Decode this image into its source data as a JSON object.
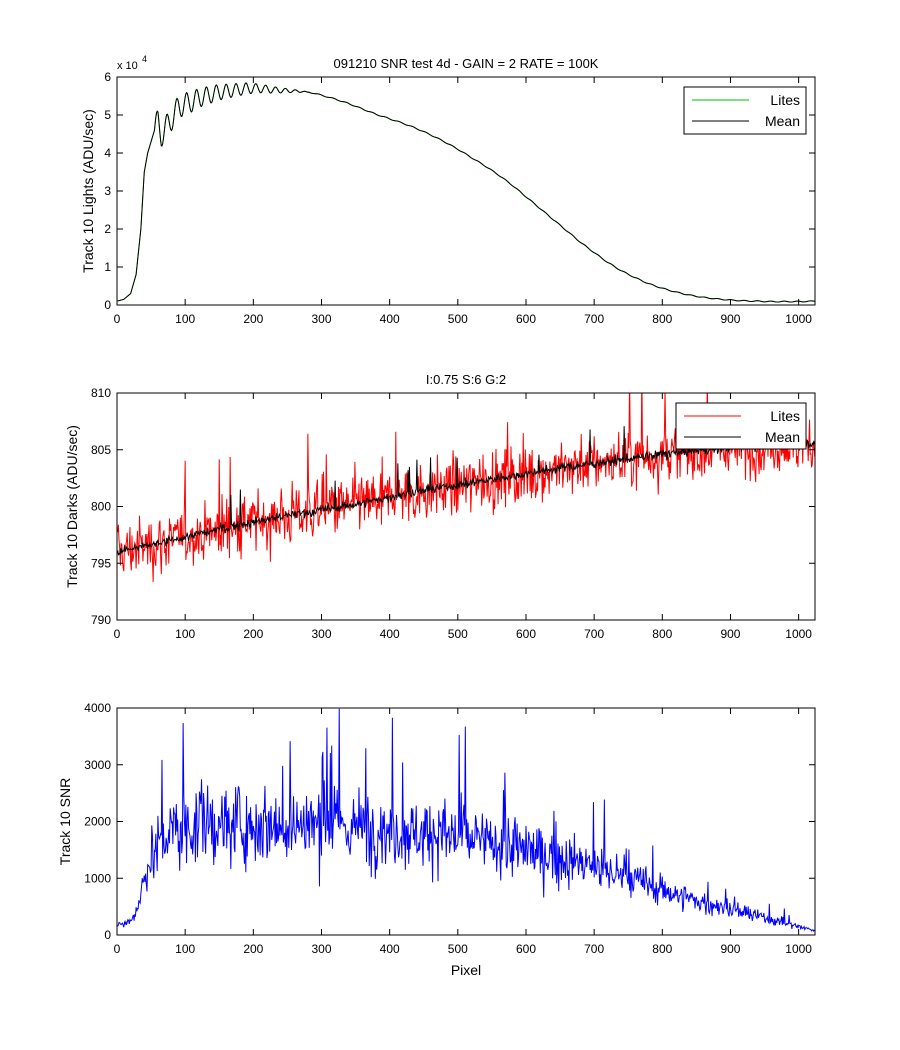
{
  "chart_data": [
    {
      "type": "line",
      "title": "091210  SNR test 4d - GAIN = 2  RATE = 100K",
      "xlabel": "",
      "ylabel": "Track 10 Lights (ADU/sec)",
      "y_multiplier_label": "x 10",
      "y_multiplier_exponent": "4",
      "xlim": [
        0,
        1024
      ],
      "ylim": [
        0,
        6
      ],
      "xticks": [
        "0",
        "100",
        "200",
        "300",
        "400",
        "500",
        "600",
        "700",
        "800",
        "900",
        "1000"
      ],
      "yticks": [
        "0",
        "1",
        "2",
        "3",
        "4",
        "5",
        "6"
      ],
      "legend_position": "top-right",
      "grid": false,
      "series": [
        {
          "name": "Lites",
          "color": "#00c000",
          "x": [
            0,
            10,
            20,
            28,
            35,
            40,
            45,
            50,
            55,
            60,
            65,
            70,
            80,
            90,
            100,
            110,
            120,
            130,
            140,
            150,
            160,
            170,
            180,
            190,
            200,
            210,
            220,
            230,
            240,
            250,
            260,
            270,
            280,
            290,
            300,
            320,
            340,
            360,
            380,
            400,
            420,
            440,
            460,
            480,
            500,
            520,
            540,
            560,
            580,
            600,
            620,
            640,
            660,
            680,
            700,
            720,
            740,
            760,
            780,
            800,
            820,
            840,
            860,
            880,
            900,
            920,
            940,
            960,
            980,
            1000,
            1024
          ],
          "values": [
            0.1,
            0.15,
            0.3,
            0.8,
            2.0,
            3.5,
            4.0,
            4.3,
            4.6,
            4.8,
            4.5,
            4.6,
            4.9,
            5.2,
            5.3,
            5.35,
            5.45,
            5.5,
            5.55,
            5.6,
            5.62,
            5.65,
            5.67,
            5.7,
            5.7,
            5.7,
            5.68,
            5.66,
            5.65,
            5.64,
            5.63,
            5.62,
            5.6,
            5.57,
            5.52,
            5.42,
            5.3,
            5.16,
            5.02,
            4.9,
            4.78,
            4.64,
            4.48,
            4.3,
            4.1,
            3.88,
            3.66,
            3.42,
            3.15,
            2.85,
            2.55,
            2.25,
            1.95,
            1.65,
            1.38,
            1.12,
            0.9,
            0.72,
            0.56,
            0.44,
            0.34,
            0.26,
            0.2,
            0.16,
            0.13,
            0.11,
            0.1,
            0.09,
            0.09,
            0.09,
            0.1
          ]
        },
        {
          "name": "Mean",
          "color": "#000000",
          "x": [
            0,
            10,
            20,
            28,
            35,
            40,
            45,
            50,
            55,
            60,
            65,
            70,
            80,
            90,
            100,
            110,
            120,
            130,
            140,
            150,
            160,
            170,
            180,
            190,
            200,
            210,
            220,
            230,
            240,
            250,
            260,
            270,
            280,
            290,
            300,
            320,
            340,
            360,
            380,
            400,
            420,
            440,
            460,
            480,
            500,
            520,
            540,
            560,
            580,
            600,
            620,
            640,
            660,
            680,
            700,
            720,
            740,
            760,
            780,
            800,
            820,
            840,
            860,
            880,
            900,
            920,
            940,
            960,
            980,
            1000,
            1024
          ],
          "values": [
            0.1,
            0.15,
            0.3,
            0.8,
            2.0,
            3.5,
            4.0,
            4.3,
            4.6,
            4.8,
            4.5,
            4.6,
            4.9,
            5.2,
            5.3,
            5.35,
            5.45,
            5.5,
            5.55,
            5.6,
            5.62,
            5.65,
            5.67,
            5.7,
            5.7,
            5.7,
            5.68,
            5.66,
            5.65,
            5.64,
            5.63,
            5.62,
            5.6,
            5.57,
            5.52,
            5.42,
            5.3,
            5.16,
            5.02,
            4.9,
            4.78,
            4.64,
            4.48,
            4.3,
            4.1,
            3.88,
            3.66,
            3.42,
            3.15,
            2.85,
            2.55,
            2.25,
            1.95,
            1.65,
            1.38,
            1.12,
            0.9,
            0.72,
            0.56,
            0.44,
            0.34,
            0.26,
            0.2,
            0.16,
            0.13,
            0.11,
            0.1,
            0.09,
            0.09,
            0.09,
            0.1
          ]
        }
      ]
    },
    {
      "type": "line",
      "title": "I:0.75  S:6  G:2",
      "xlabel": "",
      "ylabel": "Track 10 Darks (ADU/sec)",
      "xlim": [
        0,
        1024
      ],
      "ylim": [
        790,
        810
      ],
      "xticks": [
        "0",
        "100",
        "200",
        "300",
        "400",
        "500",
        "600",
        "700",
        "800",
        "900",
        "1000"
      ],
      "yticks": [
        "790",
        "795",
        "800",
        "805",
        "810"
      ],
      "legend_position": "top-right",
      "grid": false,
      "series": [
        {
          "name": "Lites",
          "color": "#ff0000",
          "x": [
            0,
            50,
            100,
            150,
            200,
            250,
            300,
            350,
            400,
            450,
            500,
            550,
            600,
            650,
            700,
            750,
            800,
            850,
            900,
            950,
            1000,
            1024
          ],
          "values": [
            796.0,
            796.6,
            797.3,
            798.0,
            798.6,
            799.2,
            799.7,
            800.2,
            800.8,
            801.4,
            801.9,
            802.4,
            802.9,
            803.4,
            803.8,
            804.2,
            804.6,
            804.9,
            805.2,
            805.4,
            805.5,
            805.6
          ],
          "noise_amplitude": 2.2
        },
        {
          "name": "Mean",
          "color": "#000000",
          "x": [
            0,
            50,
            100,
            150,
            200,
            250,
            300,
            350,
            400,
            450,
            500,
            550,
            600,
            650,
            700,
            750,
            800,
            850,
            900,
            950,
            1000,
            1024
          ],
          "values": [
            796.0,
            796.6,
            797.3,
            798.0,
            798.6,
            799.2,
            799.7,
            800.2,
            800.8,
            801.4,
            801.9,
            802.4,
            802.9,
            803.4,
            803.8,
            804.2,
            804.6,
            804.9,
            805.2,
            805.4,
            805.5,
            805.6
          ],
          "noise_amplitude": 0.35
        }
      ]
    },
    {
      "type": "line",
      "title": "",
      "xlabel": "Pixel",
      "ylabel": "Track 10 SNR",
      "xlim": [
        0,
        1024
      ],
      "ylim": [
        0,
        4000
      ],
      "xticks": [
        "0",
        "100",
        "200",
        "300",
        "400",
        "500",
        "600",
        "700",
        "800",
        "900",
        "1000"
      ],
      "yticks": [
        "0",
        "1000",
        "2000",
        "3000",
        "4000"
      ],
      "grid": false,
      "series": [
        {
          "color": "#0000ff",
          "x": [
            0,
            20,
            30,
            40,
            50,
            60,
            80,
            100,
            150,
            200,
            250,
            300,
            350,
            400,
            450,
            500,
            550,
            600,
            650,
            700,
            750,
            800,
            850,
            900,
            950,
            1000,
            1024
          ],
          "values": [
            150,
            250,
            500,
            1000,
            1400,
            1600,
            1800,
            1900,
            1950,
            1950,
            1950,
            1950,
            1900,
            1850,
            1800,
            1750,
            1600,
            1500,
            1350,
            1200,
            1000,
            800,
            600,
            450,
            300,
            150,
            80
          ],
          "noise_amplitude": 0.3
        }
      ]
    }
  ]
}
